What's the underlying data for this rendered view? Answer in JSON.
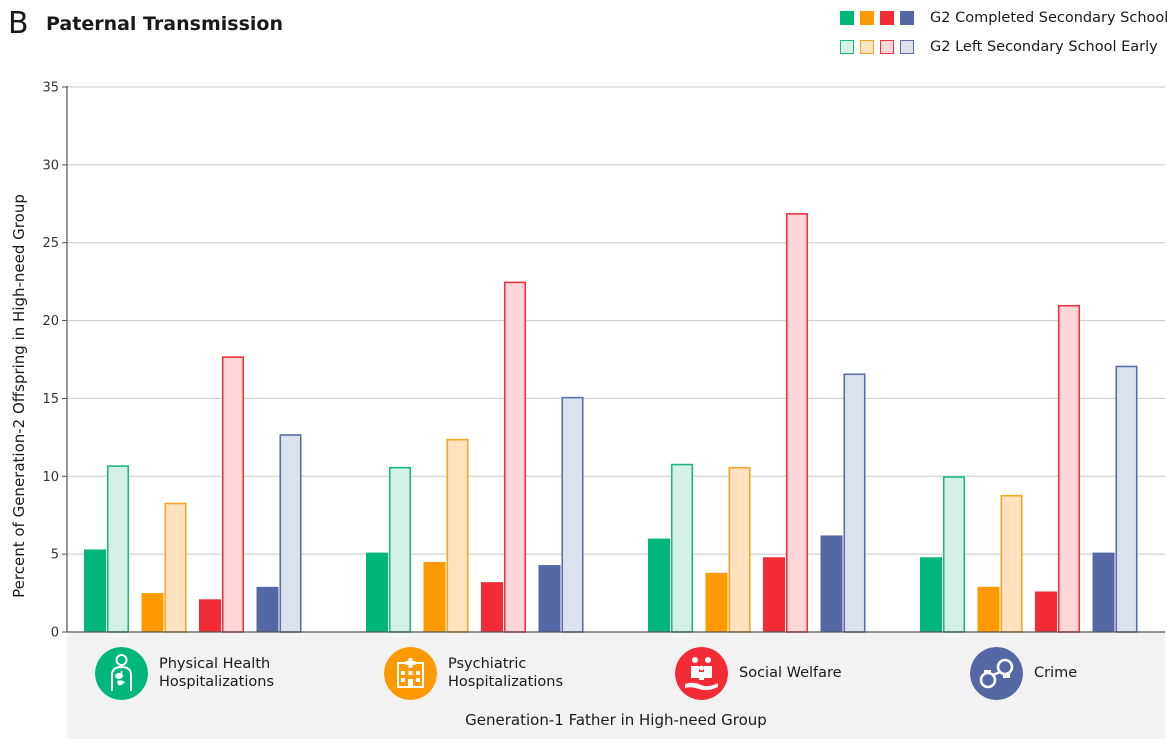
{
  "panel_letter": "B",
  "colors": {
    "green_solid": "#00b67a",
    "green_light": "#d3f1e6",
    "green_edge": "#1cb87e",
    "orange_solid": "#ff9900",
    "orange_light": "#ffe3c0",
    "orange_edge": "#f5a623",
    "red_solid": "#f22b37",
    "red_light": "#ffd6d8",
    "red_edge": "#ee3340",
    "blue_solid": "#5468a6",
    "blue_light": "#dce1ee",
    "blue_edge": "#5a6ea8",
    "panel_bg": "#f2f2f2"
  },
  "legend": {
    "completed_label": "G2 Completed Secondary School",
    "left_label": "G2 Left Secondary School Early"
  },
  "categories": [
    {
      "label": "Physical Health\nHospitalizations",
      "icon": "body-organs-icon",
      "color": "#00b67a"
    },
    {
      "label": "Psychiatric\nHospitalizations",
      "icon": "hospital-building-icon",
      "color": "#ff9900"
    },
    {
      "label": "Social Welfare",
      "icon": "family-hand-icon",
      "color": "#f22b37"
    },
    {
      "label": "Crime",
      "icon": "handcuffs-icon",
      "color": "#5468a6"
    }
  ],
  "chart_data": {
    "type": "bar",
    "title": "Paternal Transmission",
    "xlabel": "Generation-1 Father in High-need Group",
    "ylabel": "Percent of Generation-2 Offspring in High-need  Group",
    "ylim": [
      0,
      35
    ],
    "yticks": [
      0,
      5,
      10,
      15,
      20,
      25,
      30,
      35
    ],
    "grid": true,
    "legend_position": "top-right",
    "groups": [
      "Physical Health Hospitalizations",
      "Psychiatric Hospitalizations",
      "Social Welfare",
      "Crime"
    ],
    "subcategories": [
      "Physical Health Hospitalizations",
      "Psychiatric Hospitalizations",
      "Social Welfare",
      "Crime"
    ],
    "series": [
      {
        "name": "G2 Completed Secondary School",
        "values": [
          [
            5.3,
            2.5,
            2.1,
            2.9
          ],
          [
            5.1,
            4.5,
            3.2,
            4.3
          ],
          [
            6.0,
            3.8,
            4.8,
            6.2
          ],
          [
            4.8,
            2.9,
            2.6,
            5.1
          ]
        ]
      },
      {
        "name": "G2 Left Secondary School Early",
        "values": [
          [
            10.7,
            8.3,
            17.7,
            12.7
          ],
          [
            10.6,
            12.4,
            22.5,
            15.1
          ],
          [
            10.8,
            10.6,
            26.9,
            16.6
          ],
          [
            10.0,
            8.8,
            21.0,
            17.1
          ]
        ]
      }
    ]
  }
}
